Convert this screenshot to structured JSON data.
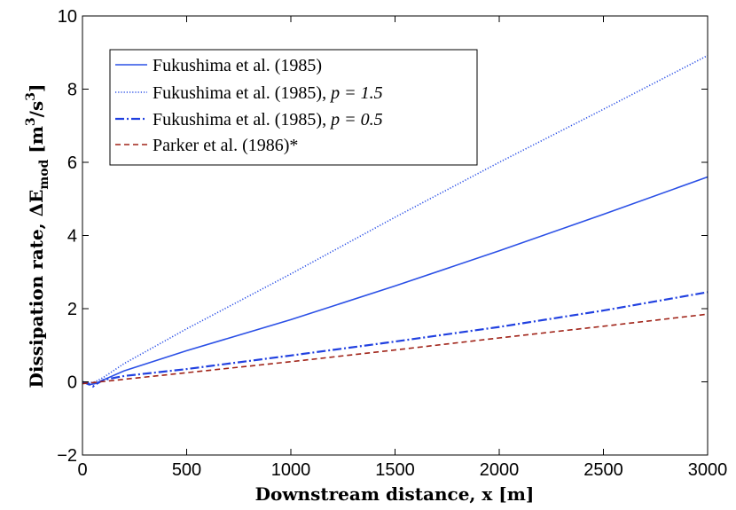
{
  "chart_data": {
    "type": "line",
    "xlabel": "Downstream distance, x [m]",
    "ylabel": "Dissipation rate, ΔE_mod [m³/s³]",
    "ylabel_parts": {
      "prefix": "Dissipation rate, ",
      "symbol": "ΔE",
      "subscript": "mod",
      "units": " [m",
      "exp1": "3",
      "slash": "/s",
      "exp2": "3",
      "close": "]"
    },
    "xlim": [
      0,
      3000
    ],
    "ylim": [
      -2,
      10
    ],
    "xticks": [
      0,
      500,
      1000,
      1500,
      2000,
      2500,
      3000
    ],
    "yticks": [
      -2,
      0,
      2,
      4,
      6,
      8,
      10
    ],
    "xtick_labels": [
      "0",
      "500",
      "1000",
      "1500",
      "2000",
      "2500",
      "3000"
    ],
    "ytick_labels": [
      "−2",
      "0",
      "2",
      "4",
      "6",
      "8",
      "10"
    ],
    "grid": false,
    "legend_position": "top-left",
    "series": [
      {
        "name": "Fukushima et al. (1985)",
        "name_main": "Fukushima et al. (1985)",
        "name_param": "",
        "color": "#2b50e6",
        "style": "solid",
        "x": [
          0,
          30,
          60,
          100,
          200,
          500,
          1000,
          1500,
          2000,
          2500,
          3000
        ],
        "y": [
          0.0,
          -0.08,
          -0.05,
          0.05,
          0.3,
          0.85,
          1.7,
          2.62,
          3.58,
          4.58,
          5.6
        ]
      },
      {
        "name": "Fukushima et al. (1985), p = 1.5",
        "name_main": "Fukushima et al. (1985), ",
        "name_param": "p = 1.5",
        "color": "#2b50e6",
        "style": "dotted",
        "x": [
          0,
          30,
          60,
          100,
          200,
          500,
          1000,
          1500,
          2000,
          2500,
          3000
        ],
        "y": [
          0.0,
          -0.03,
          0.0,
          0.12,
          0.5,
          1.45,
          2.95,
          4.5,
          6.0,
          7.45,
          8.92
        ]
      },
      {
        "name": "Fukushima et al. (1985), p = 0.5",
        "name_main": "Fukushima et al. (1985), ",
        "name_param": "p = 0.5",
        "color": "#2040e0",
        "style": "dashdot",
        "x": [
          0,
          30,
          50,
          60,
          100,
          200,
          500,
          1000,
          1500,
          2000,
          2500,
          3000
        ],
        "y": [
          0.0,
          -0.05,
          -0.13,
          -0.08,
          0.05,
          0.16,
          0.35,
          0.72,
          1.1,
          1.5,
          1.95,
          2.45
        ]
      },
      {
        "name": "Parker et al. (1986)*",
        "name_main": "Parker et al. (1986)*",
        "name_param": "",
        "color": "#a02318",
        "style": "dashed",
        "x": [
          0,
          500,
          1000,
          1500,
          2000,
          2500,
          3000
        ],
        "y": [
          -0.05,
          0.25,
          0.55,
          0.87,
          1.2,
          1.52,
          1.85
        ]
      }
    ]
  }
}
